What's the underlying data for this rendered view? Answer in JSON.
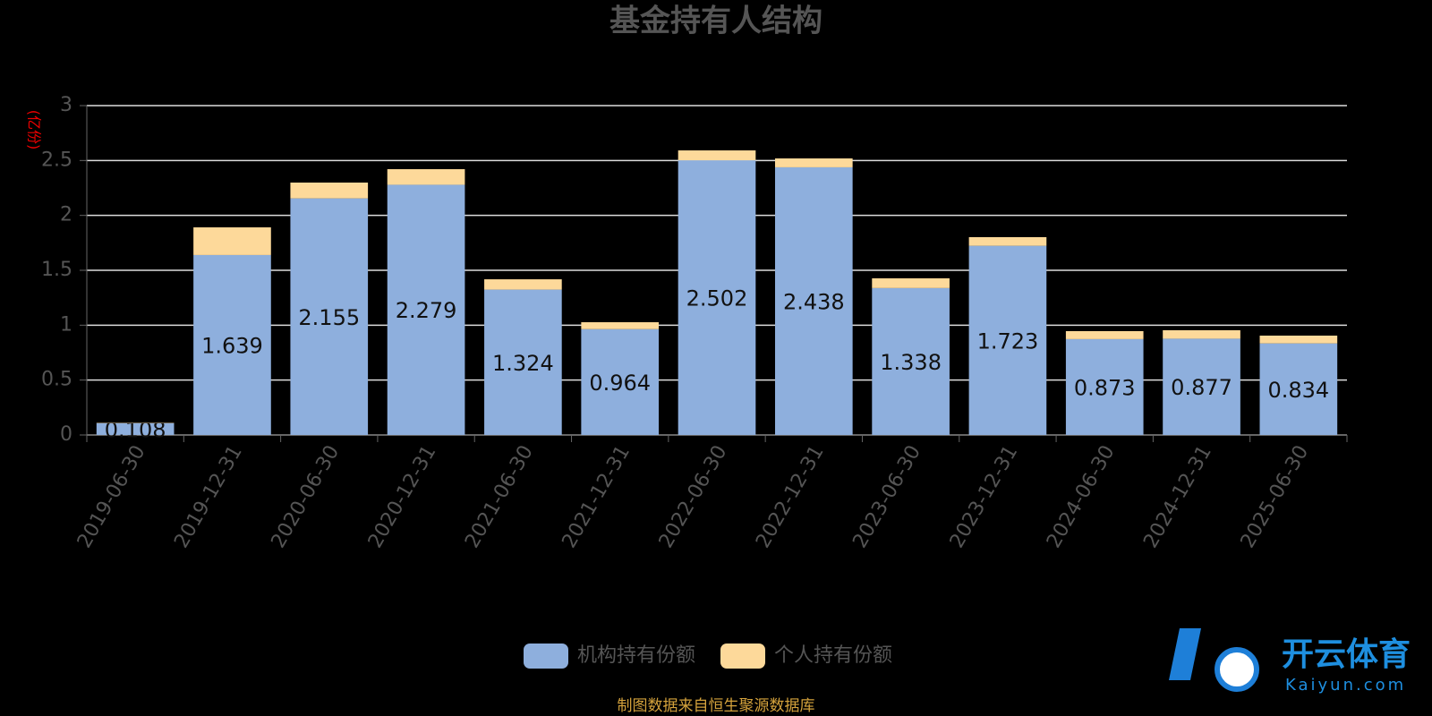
{
  "chart_data": {
    "type": "stacked_bar",
    "title": "基金持有人结构",
    "y_axis_label": "(亿份)",
    "source": "制图数据来自恒生聚源数据库",
    "watermark": {
      "name": "开云体育",
      "site": "Kaiyun.com"
    },
    "categories": [
      "2019-06-30",
      "2019-12-31",
      "2020-06-30",
      "2020-12-31",
      "2021-06-30",
      "2021-12-31",
      "2022-06-30",
      "2022-12-31",
      "2023-06-30",
      "2023-12-31",
      "2024-06-30",
      "2024-12-31",
      "2025-06-30"
    ],
    "series": [
      {
        "name": "机构持有份额",
        "color": "#8eafdd",
        "show_labels": true,
        "values": [
          0.108,
          1.639,
          2.155,
          2.279,
          1.324,
          0.964,
          2.502,
          2.438,
          1.338,
          1.723,
          0.873,
          0.877,
          0.834
        ]
      },
      {
        "name": "个人持有份额",
        "color": "#fdd99a",
        "show_labels": false,
        "values": [
          0.003,
          0.252,
          0.144,
          0.142,
          0.094,
          0.063,
          0.09,
          0.081,
          0.089,
          0.079,
          0.073,
          0.077,
          0.071
        ]
      }
    ],
    "ylim": [
      0,
      3
    ],
    "yticks": [
      0,
      0.5,
      1,
      1.5,
      2,
      2.5,
      3
    ],
    "grid": true,
    "legend": "bottom"
  }
}
